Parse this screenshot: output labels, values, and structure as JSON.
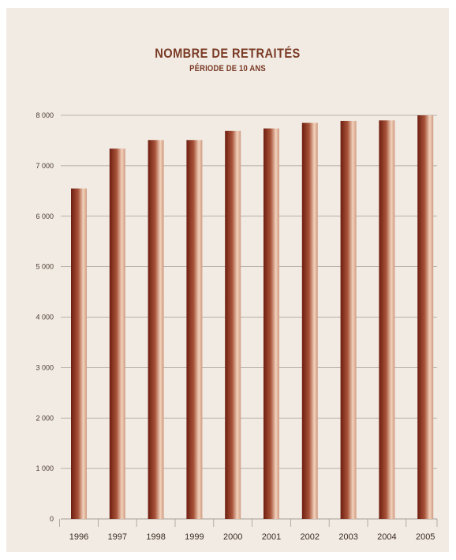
{
  "chart_data": {
    "type": "bar",
    "title": "NOMBRE DE RETRAITÉS",
    "subtitle": "PÉRIODE DE 10 ANS",
    "categories": [
      "1996",
      "1997",
      "1998",
      "1999",
      "2000",
      "2001",
      "2002",
      "2003",
      "2004",
      "2005"
    ],
    "values": [
      6550,
      7340,
      7510,
      7510,
      7690,
      7740,
      7850,
      7890,
      7900,
      8000
    ],
    "yticks": [
      "0",
      "1 000",
      "2 000",
      "3 000",
      "4 000",
      "5 000",
      "6 000",
      "7 000",
      "8 000"
    ],
    "ylim": [
      0,
      8000
    ],
    "grid": true,
    "legend": "none",
    "colors": {
      "bar_dark": "#6e1e10",
      "bar_mid": "#a8533a",
      "bar_light": "#f2d2bc",
      "grid": "#a49c93",
      "background": "#f1ebe4",
      "title": "#7a3a24"
    }
  }
}
